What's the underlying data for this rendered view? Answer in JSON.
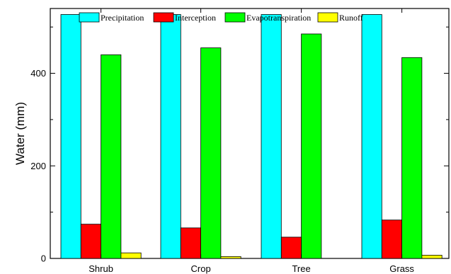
{
  "chart_data": {
    "type": "bar",
    "title": "",
    "xlabel": "",
    "ylabel": "Water (mm)",
    "ylim": [
      0,
      540
    ],
    "yticks": [
      0,
      200,
      400
    ],
    "categories": [
      "Shrub",
      "Crop",
      "Tree",
      "Grass"
    ],
    "series": [
      {
        "name": "Precipitation",
        "color": "#00ffff",
        "values": [
          527,
          527,
          527,
          527
        ]
      },
      {
        "name": "Interception",
        "color": "#ff0000",
        "values": [
          74,
          66,
          46,
          83
        ]
      },
      {
        "name": "Evapotranspiration",
        "color": "#00ff00",
        "values": [
          440,
          455,
          485,
          434
        ]
      },
      {
        "name": "Runoff",
        "color": "#ffff00",
        "values": [
          12,
          4,
          0,
          7
        ]
      }
    ],
    "legend_position": "top",
    "grid": false
  }
}
